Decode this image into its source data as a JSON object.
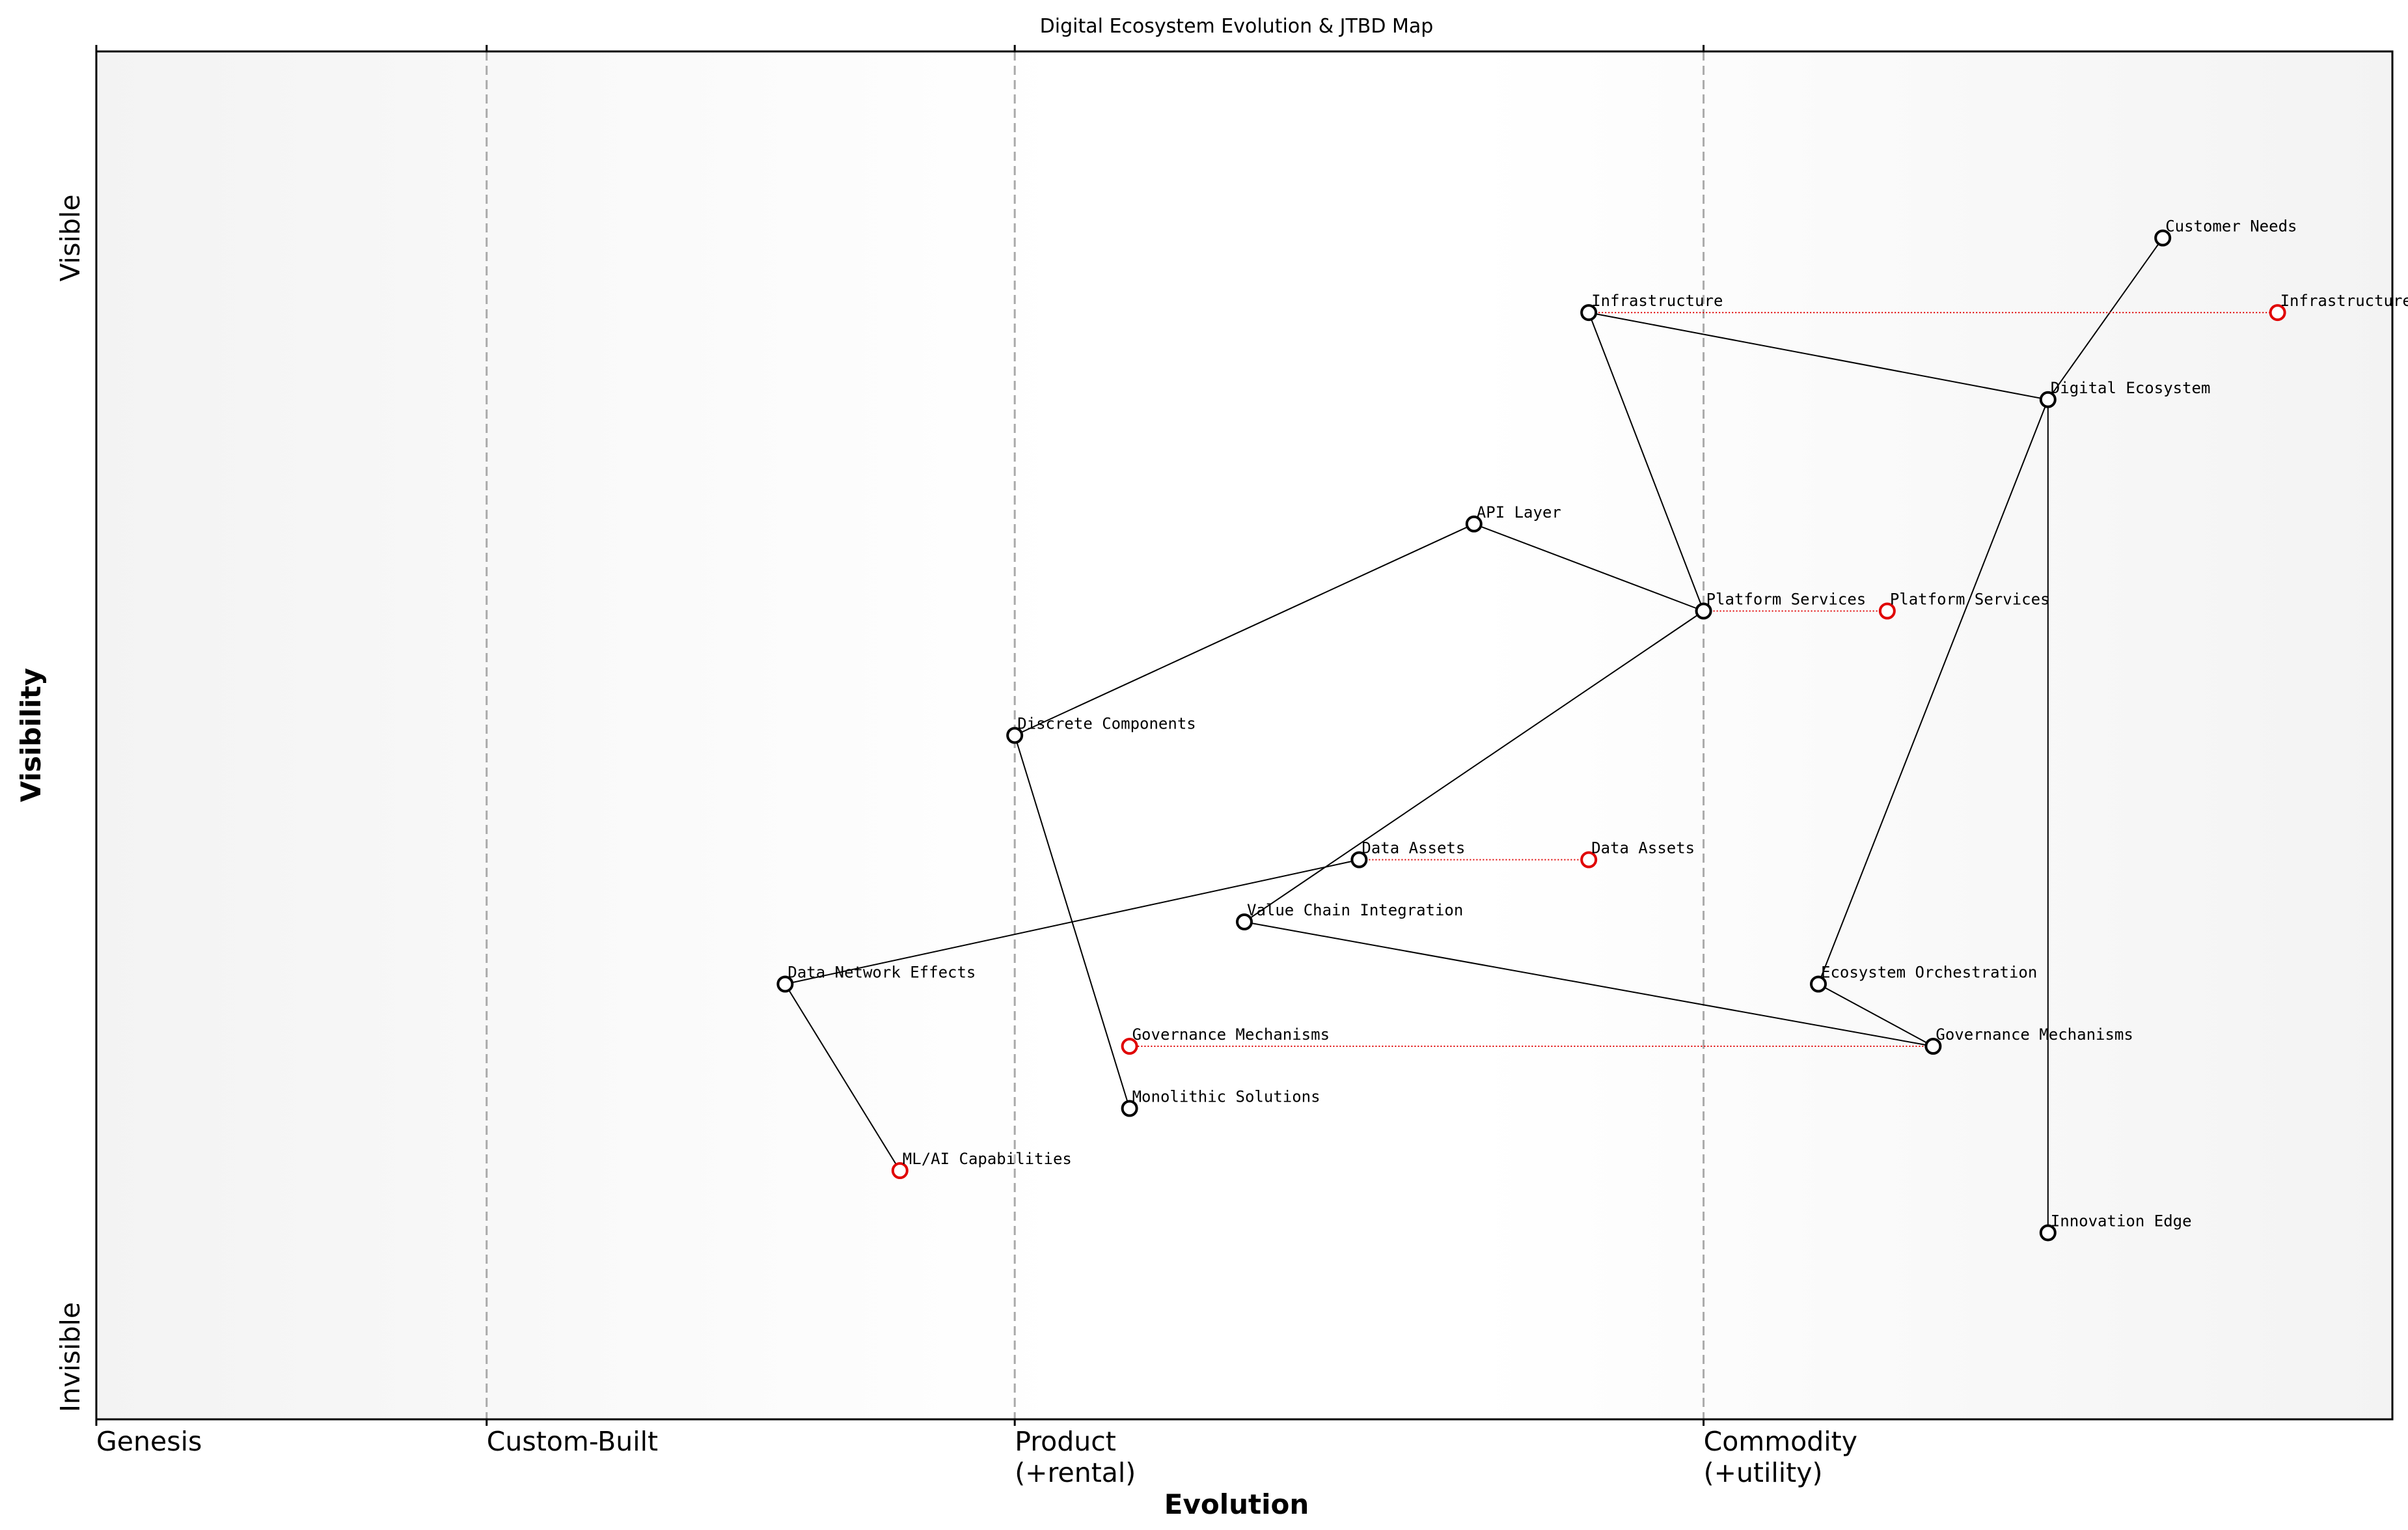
{
  "chart_data": {
    "type": "wardley",
    "title": "Digital Ecosystem Evolution & JTBD Map",
    "x_label": "Evolution",
    "y_label": "Visibility",
    "xlim": [
      0,
      1
    ],
    "ylim": [
      0,
      1.1
    ],
    "xticks": [
      {
        "value": 0,
        "label": "Genesis"
      },
      {
        "value": 0.17,
        "label": "Custom-Built"
      },
      {
        "value": 0.4,
        "label": "Product\n(+rental)"
      },
      {
        "value": 0.7,
        "label": "Commodity\n(+utility)"
      }
    ],
    "yticks": [
      {
        "value": 0.05,
        "label": "Invisible"
      },
      {
        "value": 0.95,
        "label": "Visible"
      }
    ],
    "stage_lines": true,
    "nodes": [
      {
        "name": "Customer Needs",
        "x": 0.9,
        "y": 0.95,
        "color": "#000000"
      },
      {
        "name": "Infrastructure",
        "x": 0.65,
        "y": 0.89,
        "color": "#000000"
      },
      {
        "name": "Digital Ecosystem",
        "x": 0.85,
        "y": 0.82,
        "color": "#000000"
      },
      {
        "name": "API Layer",
        "x": 0.6,
        "y": 0.72,
        "color": "#000000"
      },
      {
        "name": "Platform Services",
        "x": 0.7,
        "y": 0.65,
        "color": "#000000"
      },
      {
        "name": "Discrete Components",
        "x": 0.4,
        "y": 0.55,
        "color": "#000000"
      },
      {
        "name": "Data Assets",
        "x": 0.55,
        "y": 0.45,
        "color": "#000000"
      },
      {
        "name": "Value Chain Integration",
        "x": 0.5,
        "y": 0.4,
        "color": "#000000"
      },
      {
        "name": "Data Network Effects",
        "x": 0.3,
        "y": 0.35,
        "color": "#000000"
      },
      {
        "name": "Ecosystem Orchestration",
        "x": 0.75,
        "y": 0.35,
        "color": "#000000"
      },
      {
        "name": "Governance Mechanisms",
        "x": 0.8,
        "y": 0.3,
        "color": "#000000"
      },
      {
        "name": "Monolithic Solutions",
        "x": 0.45,
        "y": 0.25,
        "color": "#000000"
      },
      {
        "name": "ML/AI Capabilities",
        "x": 0.35,
        "y": 0.2,
        "color": "#e00000"
      },
      {
        "name": "Innovation Edge",
        "x": 0.85,
        "y": 0.15,
        "color": "#000000"
      }
    ],
    "edges": [
      [
        "Customer Needs",
        "Digital Ecosystem"
      ],
      [
        "Digital Ecosystem",
        "Infrastructure"
      ],
      [
        "Infrastructure",
        "Platform Services"
      ],
      [
        "Digital Ecosystem",
        "Ecosystem Orchestration"
      ],
      [
        "Digital Ecosystem",
        "Innovation Edge"
      ],
      [
        "API Layer",
        "Platform Services"
      ],
      [
        "API Layer",
        "Discrete Components"
      ],
      [
        "Discrete Components",
        "Monolithic Solutions"
      ],
      [
        "Platform Services",
        "Value Chain Integration"
      ],
      [
        "Value Chain Integration",
        "Governance Mechanisms"
      ],
      [
        "Ecosystem Orchestration",
        "Governance Mechanisms"
      ],
      [
        "Data Assets",
        "Data Network Effects"
      ],
      [
        "Data Network Effects",
        "ML/AI Capabilities"
      ]
    ],
    "evolved_color": "#e00000",
    "evolved": [
      {
        "name": "Infrastructure",
        "x": 0.95,
        "y": 0.89
      },
      {
        "name": "Platform Services",
        "x": 0.78,
        "y": 0.65
      },
      {
        "name": "Data Assets",
        "x": 0.65,
        "y": 0.45
      },
      {
        "name": "Governance Mechanisms",
        "x": 0.45,
        "y": 0.3
      }
    ]
  }
}
